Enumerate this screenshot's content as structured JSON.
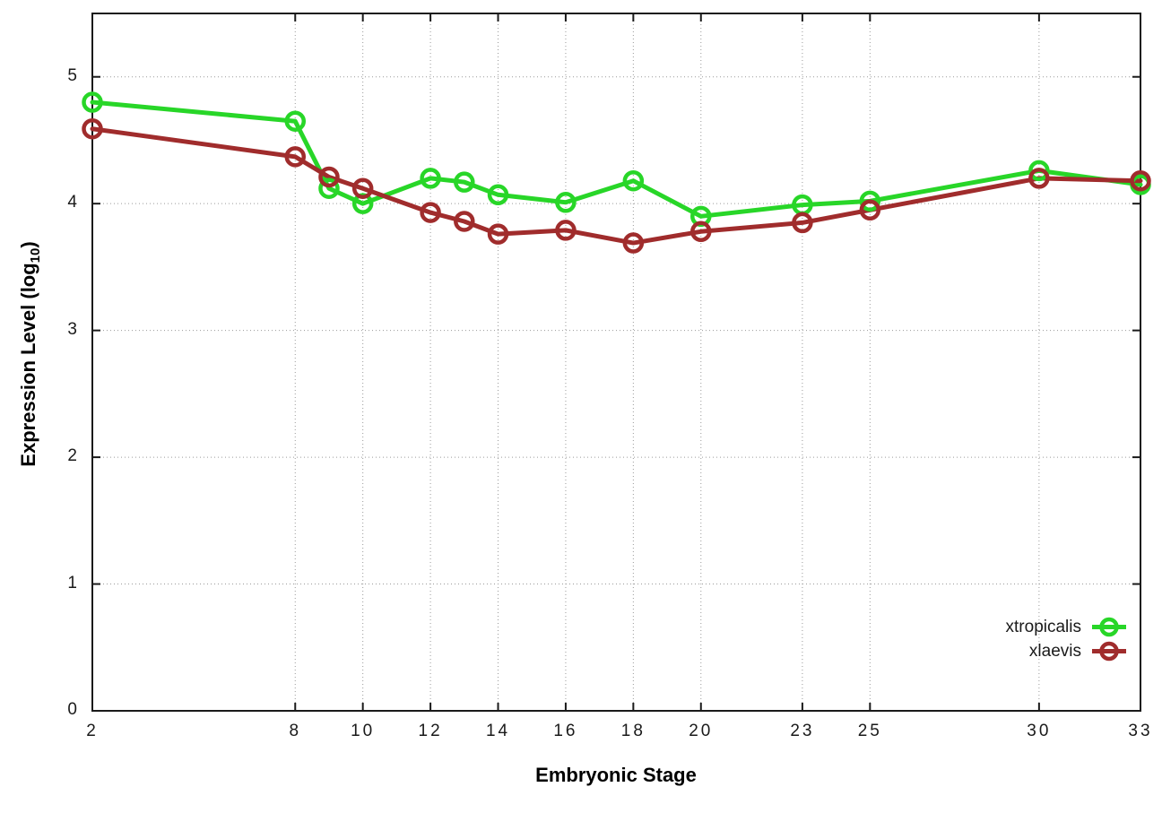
{
  "page": {
    "background_color": "#ffffff",
    "axis_color": "#1a1a1a",
    "grid_color": "#9a9a9a",
    "tick_label_color": "#1a1a1a"
  },
  "chart_data": {
    "type": "line",
    "title": "",
    "xlabel": "Embryonic Stage",
    "ylabel": "Expression Level (log10)",
    "ylabel_parts": {
      "prefix": "Expression Level (log",
      "subscript": "10",
      "suffix": ")"
    },
    "x": [
      2,
      8,
      9,
      10,
      12,
      13,
      14,
      16,
      18,
      20,
      23,
      25,
      30,
      33
    ],
    "series": [
      {
        "name": "xtropicalis",
        "color": "#28d628",
        "marker": "open-circle",
        "values": [
          4.8,
          4.65,
          4.12,
          4.0,
          4.2,
          4.17,
          4.07,
          4.01,
          4.18,
          3.9,
          3.99,
          4.02,
          4.26,
          4.15
        ]
      },
      {
        "name": "xlaevis",
        "color": "#a02c2c",
        "marker": "open-circle",
        "values": [
          4.59,
          4.37,
          4.21,
          4.12,
          3.93,
          3.86,
          3.76,
          3.79,
          3.69,
          3.78,
          3.85,
          3.95,
          4.2,
          4.18
        ]
      }
    ],
    "x_ticks": [
      2,
      8,
      10,
      12,
      14,
      16,
      18,
      20,
      23,
      25,
      30,
      33
    ],
    "y_ticks": [
      0,
      1,
      2,
      3,
      4,
      5
    ],
    "xlim": [
      2,
      33
    ],
    "ylim": [
      0,
      5.5
    ],
    "grid": true,
    "grid_style": "dotted",
    "legend_position": "bottom-right-inside",
    "line_width": 5,
    "marker_radius": 9.5
  }
}
